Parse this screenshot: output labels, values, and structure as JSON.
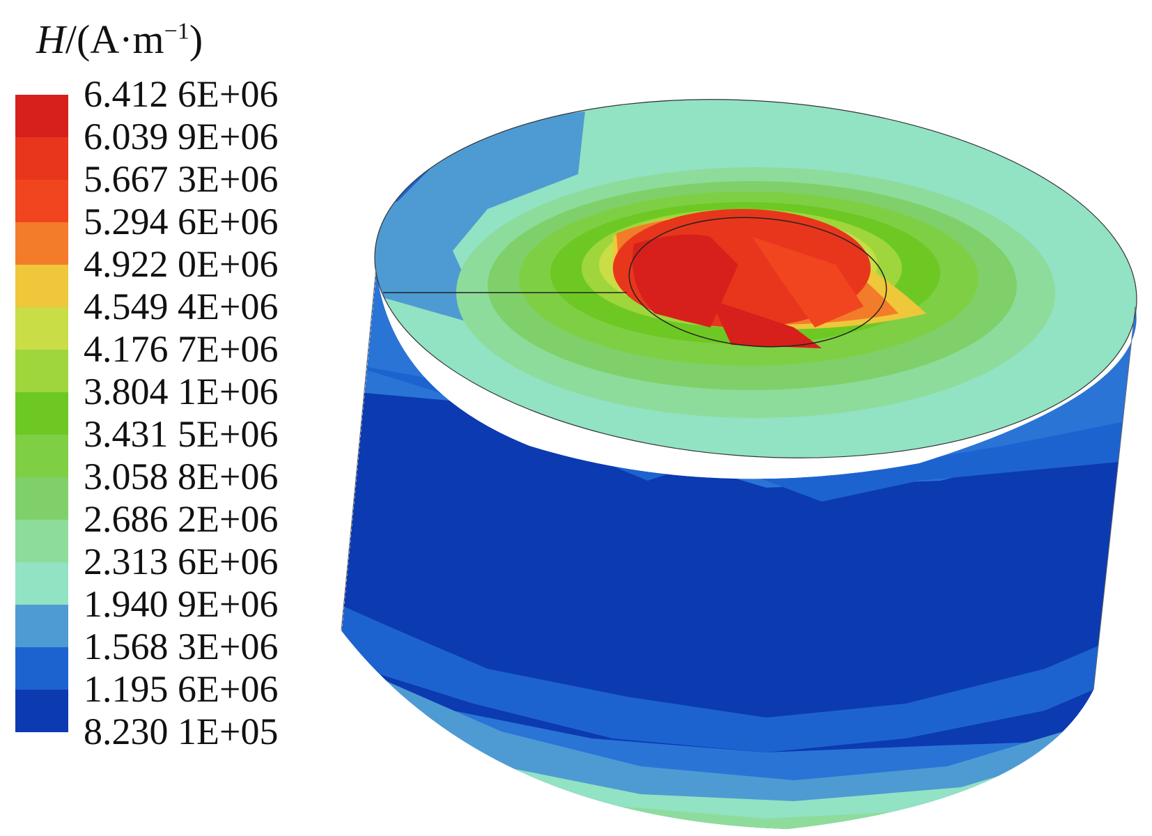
{
  "legend": {
    "variable": "H",
    "unit_prefix": "/(A·m",
    "unit_exp": "−1",
    "unit_suffix": ")",
    "tick_labels": [
      "6.412 6E+06",
      "6.039 9E+06",
      "5.667 3E+06",
      "5.294 6E+06",
      "4.922 0E+06",
      "4.549 4E+06",
      "4.176 7E+06",
      "3.804 1E+06",
      "3.431 5E+06",
      "3.058 8E+06",
      "2.686 2E+06",
      "2.313 6E+06",
      "1.940 9E+06",
      "1.568 3E+06",
      "1.195 6E+06",
      "8.230 1E+05"
    ],
    "band_colors": [
      "#d7201b",
      "#e8361c",
      "#f0451e",
      "#f37c2a",
      "#eec73a",
      "#c9dd47",
      "#9fd63c",
      "#6ec823",
      "#7fcf45",
      "#7fd06a",
      "#8ddc9b",
      "#92e2c4",
      "#4e9bd3",
      "#1d63cf",
      "#0c3ab1"
    ]
  }
}
